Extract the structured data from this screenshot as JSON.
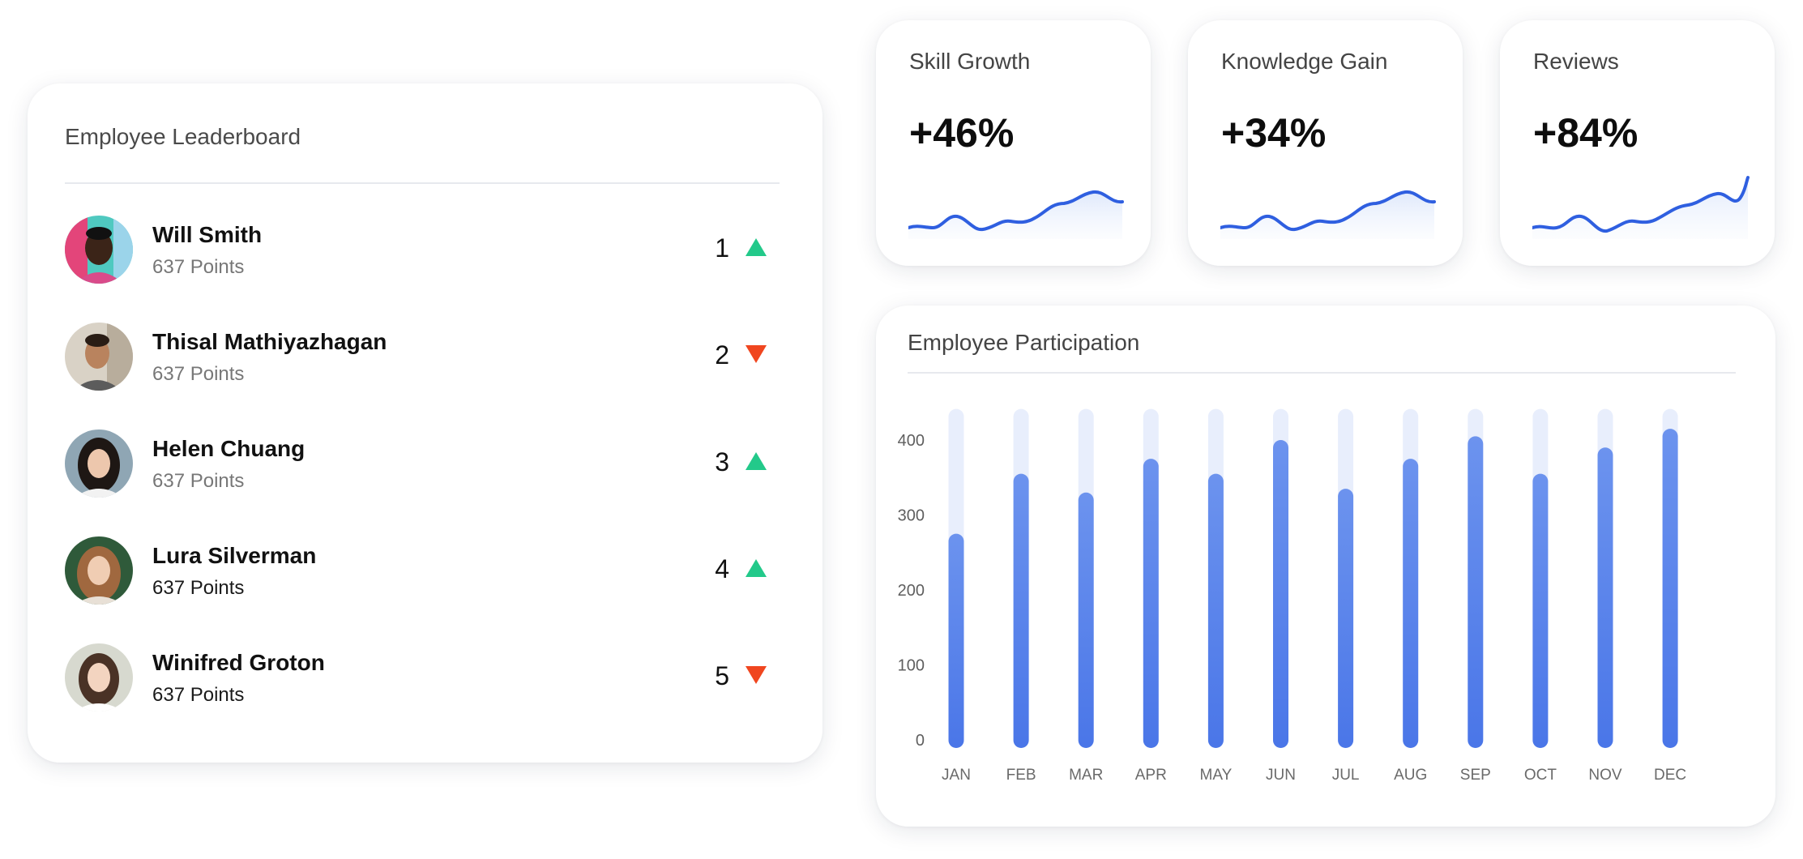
{
  "leaderboard": {
    "title": "Employee Leaderboard",
    "employees": [
      {
        "name": "Will Smith",
        "points": "637 Points",
        "rank": "1",
        "trend": "up",
        "avatar": "avatar-photo-will-smith"
      },
      {
        "name": "Thisal Mathiyazhagan",
        "points": "637 Points",
        "rank": "2",
        "trend": "down",
        "avatar": "avatar-photo-thisal"
      },
      {
        "name": "Helen Chuang",
        "points": "637 Points",
        "rank": "3",
        "trend": "up",
        "avatar": "avatar-photo-helen"
      },
      {
        "name": "Lura Silverman",
        "points": "637 Points",
        "rank": "4",
        "trend": "up",
        "avatar": "avatar-photo-lura"
      },
      {
        "name": "Winifred Groton",
        "points": "637 Points",
        "rank": "5",
        "trend": "down",
        "avatar": "avatar-photo-winifred"
      }
    ]
  },
  "stats": [
    {
      "title": "Skill Growth",
      "value": "+46%"
    },
    {
      "title": "Knowledge Gain",
      "value": "+34%"
    },
    {
      "title": "Reviews",
      "value": "+84%"
    }
  ],
  "participation": {
    "title": "Employee Participation"
  },
  "colors": {
    "trend_up": "#23c98a",
    "trend_down": "#f0461f",
    "bar": "#4b78ea",
    "bar_track": "#e8eefc",
    "sparkline": "#2f5fe0"
  },
  "chart_data": {
    "type": "bar",
    "categories": [
      "JAN",
      "FEB",
      "MAR",
      "APR",
      "MAY",
      "JUN",
      "JUL",
      "AUG",
      "SEP",
      "OCT",
      "NOV",
      "DEC"
    ],
    "values": [
      275,
      355,
      330,
      375,
      355,
      400,
      335,
      375,
      405,
      355,
      390,
      415
    ],
    "ylim": [
      0,
      400
    ],
    "yticks": [
      0,
      100,
      200,
      300,
      400
    ],
    "track_max": 435,
    "grid": false,
    "title": "",
    "xlabel": "",
    "ylabel": ""
  }
}
